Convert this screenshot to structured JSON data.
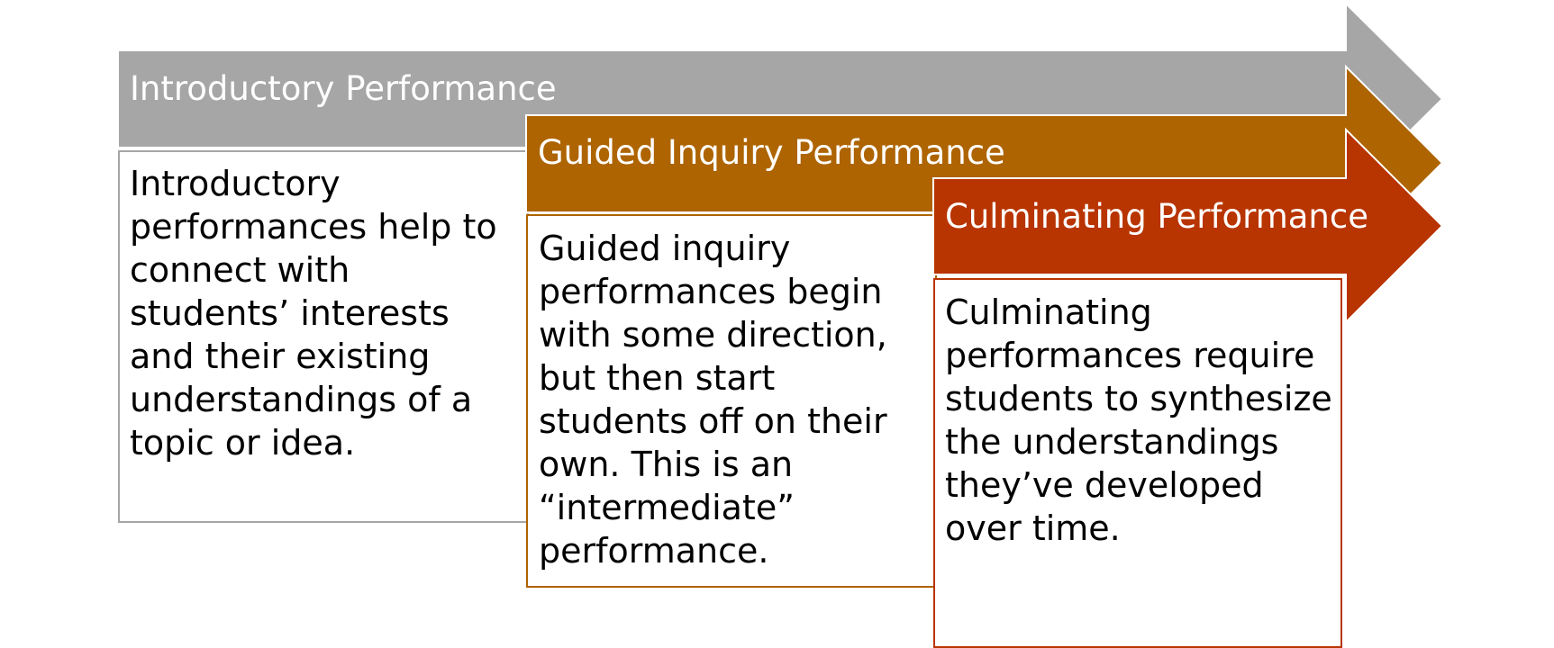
{
  "stages": [
    {
      "id": "introductory",
      "title": "Introductory Performance",
      "description": "Introductory performances help to connect with students’ interests and their existing understandings of a topic or idea.",
      "arrow_color": "#a6a6a6",
      "border_color": "#a6a6a6"
    },
    {
      "id": "guided",
      "title": "Guided Inquiry Performance",
      "description": "Guided inquiry performances begin with some direction, but then start students off on their own. This is an “intermediate” performance.",
      "arrow_color": "#ae6400",
      "border_color": "#ae6400"
    },
    {
      "id": "culminating",
      "title": "Culminating Performance",
      "description": "Culminating performances require students to synthesize the understandings they’ve developed over time.",
      "arrow_color": "#b83400",
      "border_color": "#b83400"
    }
  ],
  "outline_color": "#ffffff"
}
